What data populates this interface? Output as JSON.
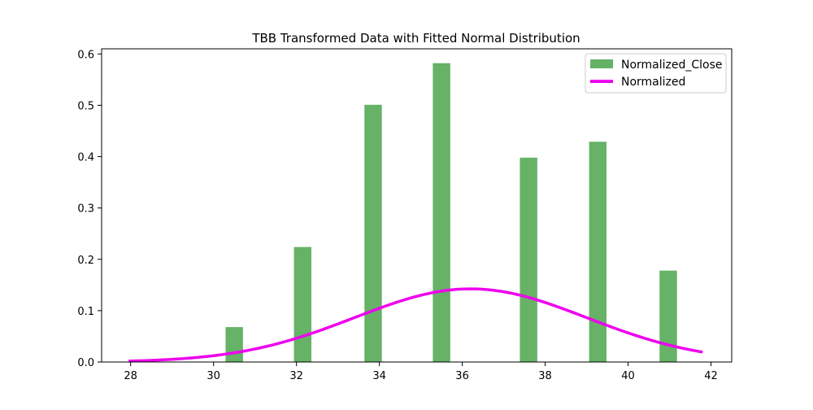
{
  "chart_data": {
    "type": "bar",
    "title": "TBB Transformed Data with Fitted Normal Distribution",
    "xlabel": "",
    "ylabel": "",
    "xlim": [
      27.3,
      42.5
    ],
    "ylim": [
      0,
      0.61
    ],
    "xticks": [
      28,
      30,
      32,
      34,
      36,
      38,
      40,
      42
    ],
    "xtick_labels": [
      "28",
      "30",
      "32",
      "34",
      "36",
      "38",
      "40",
      "42"
    ],
    "yticks": [
      0.0,
      0.1,
      0.2,
      0.3,
      0.4,
      0.5,
      0.6
    ],
    "ytick_labels": [
      "0.0",
      "0.1",
      "0.2",
      "0.3",
      "0.4",
      "0.5",
      "0.6"
    ],
    "grid": false,
    "legend_position": "upper right",
    "series": [
      {
        "name": "Normalized_Close",
        "kind": "bar",
        "color": "#66b266",
        "bar_width": 0.42,
        "x": [
          30.5,
          32.15,
          33.85,
          35.5,
          37.6,
          39.27,
          40.97
        ],
        "values": [
          0.068,
          0.224,
          0.501,
          0.582,
          0.398,
          0.429,
          0.178
        ]
      },
      {
        "name": "Normalized",
        "kind": "line",
        "color": "#ee00ee",
        "mean": 36.2,
        "std": 2.8,
        "x_range": [
          27.95,
          41.8
        ]
      }
    ]
  }
}
